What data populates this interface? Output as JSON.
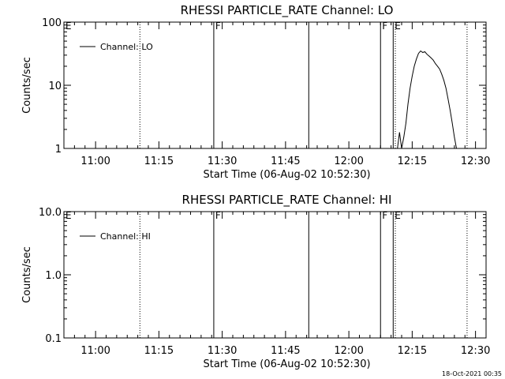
{
  "footer_timestamp": "18-Oct-2021 00:35",
  "chart_data": [
    {
      "type": "line",
      "title": "RHESSI PARTICLE_RATE Channel: LO",
      "xlabel": "Start Time (06-Aug-02 10:52:30)",
      "ylabel": "Counts/sec",
      "y_scale": "log",
      "ylim": [
        1,
        100
      ],
      "y_ticks": [
        {
          "value": 1,
          "label": "1"
        },
        {
          "value": 10,
          "label": "10"
        },
        {
          "value": 100,
          "label": "100"
        }
      ],
      "x_range_minutes": [
        "10:52:30",
        "12:32:30"
      ],
      "x_ticks": [
        "11:00",
        "11:15",
        "11:30",
        "11:45",
        "12:00",
        "12:15",
        "12:30"
      ],
      "legend": {
        "placement": "top-left",
        "label": "Channel: LO"
      },
      "grid": false,
      "event_markers": [
        {
          "time": "10:52:30",
          "label": "E",
          "style": "solid"
        },
        {
          "time": "11:10:30",
          "label": "",
          "style": "dotted"
        },
        {
          "time": "11:28:00",
          "label": "F",
          "style": "solid"
        },
        {
          "time": "11:50:30",
          "label": "",
          "style": "solid"
        },
        {
          "time": "12:07:30",
          "label": "F",
          "style": "solid"
        },
        {
          "time": "12:10:30",
          "label": "E",
          "style": "solid"
        },
        {
          "time": "12:11:00",
          "label": "",
          "style": "dotted"
        },
        {
          "time": "12:28:00",
          "label": "",
          "style": "dotted"
        }
      ],
      "series": [
        {
          "x": [
            "12:11:30",
            "12:12:00",
            "12:12:30",
            "12:13:00",
            "12:13:30",
            "12:14:00",
            "12:14:30",
            "12:15:00",
            "12:15:30",
            "12:16:00",
            "12:16:30",
            "12:17:00",
            "12:17:30",
            "12:18:00",
            "12:18:30",
            "12:19:00",
            "12:19:30",
            "12:20:00",
            "12:20:30",
            "12:21:00",
            "12:21:30",
            "12:22:00",
            "12:22:30",
            "12:23:00",
            "12:23:30",
            "12:24:00",
            "12:24:30",
            "12:25:00",
            "12:25:30",
            "12:26:00"
          ],
          "values": [
            1.0,
            1.8,
            1.0,
            1.5,
            2.5,
            5.0,
            9.0,
            14,
            20,
            26,
            32,
            35,
            33,
            34,
            31,
            29,
            27,
            25,
            22,
            20,
            18,
            15,
            12,
            9,
            6,
            4,
            2.5,
            1.5,
            1.0,
            1.0
          ]
        }
      ]
    },
    {
      "type": "line",
      "title": "RHESSI PARTICLE_RATE Channel: HI",
      "xlabel": "Start Time (06-Aug-02 10:52:30)",
      "ylabel": "Counts/sec",
      "y_scale": "log",
      "ylim": [
        0.1,
        10
      ],
      "y_ticks": [
        {
          "value": 0.1,
          "label": "0.1"
        },
        {
          "value": 1,
          "label": "1.0"
        },
        {
          "value": 10,
          "label": "10.0"
        }
      ],
      "x_range_minutes": [
        "10:52:30",
        "12:32:30"
      ],
      "x_ticks": [
        "11:00",
        "11:15",
        "11:30",
        "11:45",
        "12:00",
        "12:15",
        "12:30"
      ],
      "legend": {
        "placement": "top-left",
        "label": "Channel: HI"
      },
      "grid": false,
      "event_markers": [
        {
          "time": "10:52:30",
          "label": "E",
          "style": "solid"
        },
        {
          "time": "11:10:30",
          "label": "",
          "style": "dotted"
        },
        {
          "time": "11:28:00",
          "label": "F",
          "style": "solid"
        },
        {
          "time": "11:50:30",
          "label": "",
          "style": "solid"
        },
        {
          "time": "12:07:30",
          "label": "F",
          "style": "solid"
        },
        {
          "time": "12:10:30",
          "label": "E",
          "style": "solid"
        },
        {
          "time": "12:11:00",
          "label": "",
          "style": "dotted"
        },
        {
          "time": "12:28:00",
          "label": "",
          "style": "dotted"
        }
      ],
      "series": [
        {
          "x": [],
          "values": []
        }
      ]
    }
  ]
}
